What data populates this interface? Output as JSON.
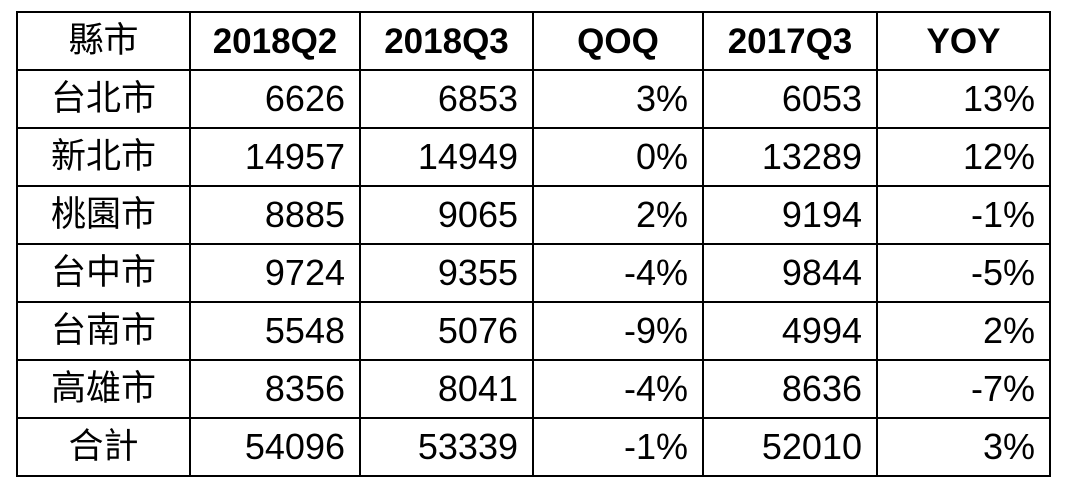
{
  "table": {
    "headers": [
      "縣市",
      "2018Q2",
      "2018Q3",
      "QOQ",
      "2017Q3",
      "YOY"
    ],
    "rows": [
      [
        "台北市",
        "6626",
        "6853",
        "3%",
        "6053",
        "13%"
      ],
      [
        "新北市",
        "14957",
        "14949",
        "0%",
        "13289",
        "12%"
      ],
      [
        "桃園市",
        "8885",
        "9065",
        "2%",
        "9194",
        "-1%"
      ],
      [
        "台中市",
        "9724",
        "9355",
        "-4%",
        "9844",
        "-5%"
      ],
      [
        "台南市",
        "5548",
        "5076",
        "-9%",
        "4994",
        "2%"
      ],
      [
        "高雄市",
        "8356",
        "8041",
        "-4%",
        "8636",
        "-7%"
      ],
      [
        "合計",
        "54096",
        "53339",
        "-1%",
        "52010",
        "3%"
      ]
    ]
  }
}
